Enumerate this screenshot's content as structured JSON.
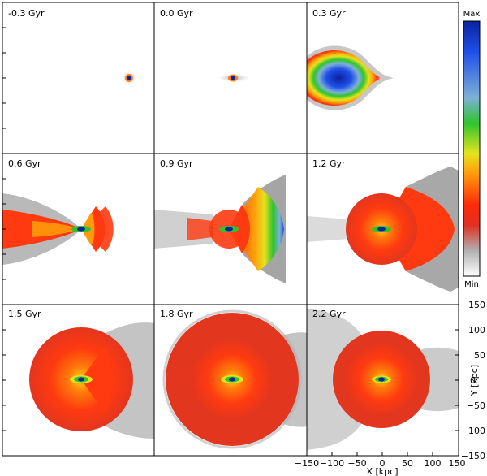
{
  "figure": {
    "panels": [
      {
        "time_label": "-0.3 Gyr",
        "stage": "point"
      },
      {
        "time_label": "0.0 Gyr",
        "stage": "point_elongated"
      },
      {
        "time_label": "0.3 Gyr",
        "stage": "bulge"
      },
      {
        "time_label": "0.6 Gyr",
        "stage": "cone_small"
      },
      {
        "time_label": "0.9 Gyr",
        "stage": "cone_large"
      },
      {
        "time_label": "1.2 Gyr",
        "stage": "shell_growing"
      },
      {
        "time_label": "1.5 Gyr",
        "stage": "shell_half"
      },
      {
        "time_label": "1.8 Gyr",
        "stage": "shell_full"
      },
      {
        "time_label": "2.2 Gyr",
        "stage": "shell_outer"
      }
    ],
    "x_axis": {
      "title": "X [kpc]",
      "ticks": [
        "−150",
        "−100",
        "−50",
        "0",
        "50",
        "100",
        "150"
      ]
    },
    "y_axis": {
      "title": "Y [kpc]",
      "ticks": [
        "150",
        "100",
        "50",
        "0",
        "−50",
        "−100",
        "−150"
      ]
    },
    "colorbar": {
      "max_label": "Max",
      "min_label": "Min",
      "colors": [
        "#0a22a0",
        "#1f4fe8",
        "#7db0d8",
        "#2fc42f",
        "#e6e21e",
        "#ff9a0a",
        "#ff2a0a",
        "#e03020",
        "#b0b0b0",
        "#ffffff"
      ]
    }
  }
}
